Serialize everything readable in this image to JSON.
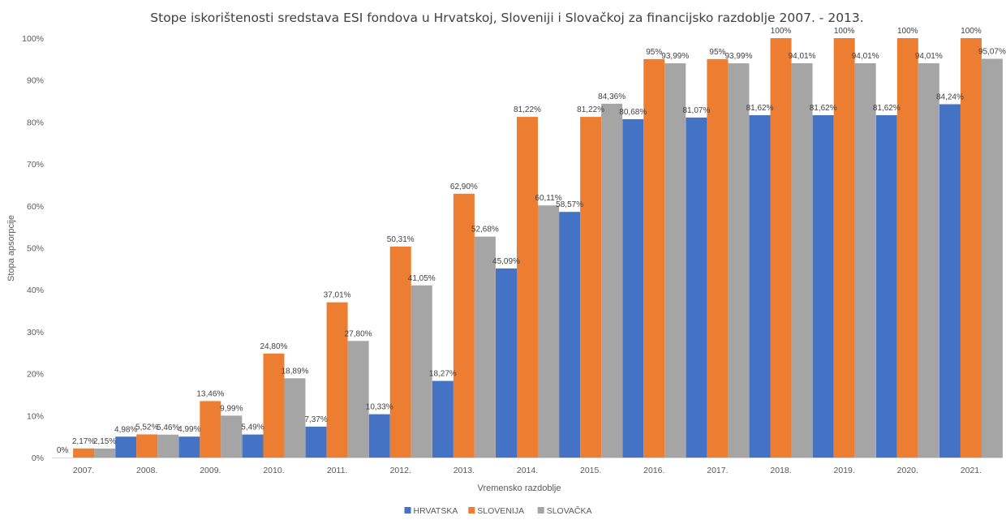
{
  "chart_data": {
    "type": "bar",
    "title": "Stope iskorištenosti sredstava ESI fondova u Hrvatskoj, Sloveniji i Slovačkoj za financijsko razdoblje 2007. - 2013.",
    "xlabel": "Vremensko razdoblje",
    "ylabel": "Stopa apsorpcije",
    "ylim": [
      0,
      100
    ],
    "yticks": [
      0,
      10,
      20,
      30,
      40,
      50,
      60,
      70,
      80,
      90,
      100
    ],
    "ytick_labels": [
      "0%",
      "10%",
      "20%",
      "30%",
      "40%",
      "50%",
      "60%",
      "70%",
      "80%",
      "90%",
      "100%"
    ],
    "grid": false,
    "legend_position": "bottom",
    "categories": [
      "2007.",
      "2008.",
      "2009.",
      "2010.",
      "2011.",
      "2012.",
      "2013.",
      "2014.",
      "2015.",
      "2016.",
      "2017.",
      "2018.",
      "2019.",
      "2020.",
      "2021."
    ],
    "series": [
      {
        "name": "HRVATSKA",
        "color": "#4472C4",
        "values": [
          0,
          4.98,
          4.99,
          5.49,
          7.37,
          10.33,
          18.27,
          45.09,
          58.57,
          80.68,
          81.07,
          81.62,
          81.62,
          81.62,
          84.24
        ],
        "labels": [
          "0%",
          "4,98%",
          "4,99%",
          "5,49%",
          "7,37%",
          "10,33%",
          "18,27%",
          "45,09%",
          "58,57%",
          "80,68%",
          "81,07%",
          "81,62%",
          "81,62%",
          "81,62%",
          "84,24%"
        ]
      },
      {
        "name": "SLOVENIJA",
        "color": "#ED7D31",
        "values": [
          2.17,
          5.52,
          13.46,
          24.8,
          37.01,
          50.31,
          62.9,
          81.22,
          81.22,
          95,
          95,
          100,
          100,
          100,
          100
        ],
        "labels": [
          "2,17%",
          "5,52%",
          "13,46%",
          "24,80%",
          "37,01%",
          "50,31%",
          "62,90%",
          "81,22%",
          "81,22%",
          "95%",
          "95%",
          "100%",
          "100%",
          "100%",
          "100%"
        ]
      },
      {
        "name": "SLOVAČKA",
        "color": "#A5A5A5",
        "values": [
          2.15,
          5.46,
          9.99,
          18.89,
          27.8,
          41.05,
          52.68,
          60.11,
          84.36,
          93.99,
          93.99,
          94.01,
          94.01,
          94.01,
          95.07
        ],
        "labels": [
          "2,15%",
          "5,46%",
          "9,99%",
          "18,89%",
          "27,80%",
          "41,05%",
          "52,68%",
          "60,11%",
          "84,36%",
          "93,99%",
          "93,99%",
          "94,01%",
          "94,01%",
          "94,01%",
          "95,07%"
        ]
      }
    ]
  }
}
